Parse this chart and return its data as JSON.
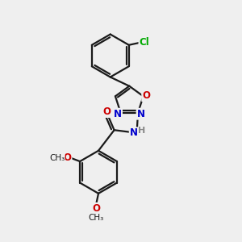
{
  "background_color": "#efefef",
  "bond_color": "#1a1a1a",
  "bond_width": 1.6,
  "atom_colors": {
    "C": "#1a1a1a",
    "N": "#0000cc",
    "O": "#cc0000",
    "Cl": "#00aa00",
    "H": "#888888"
  }
}
